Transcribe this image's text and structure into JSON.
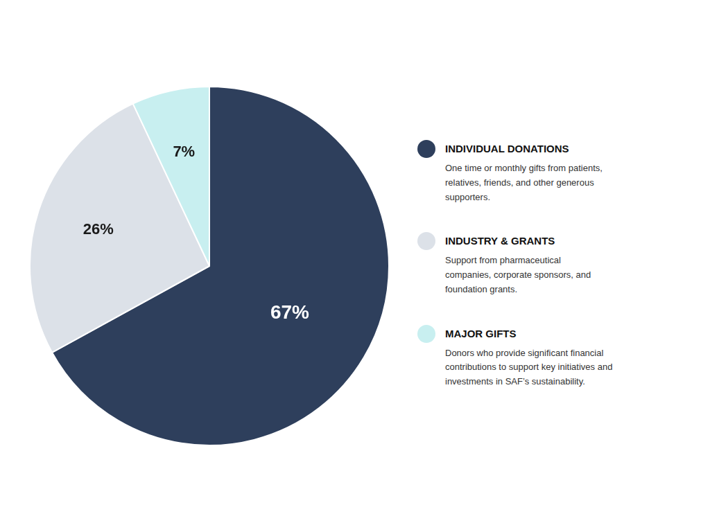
{
  "chart_data": {
    "type": "pie",
    "categories": [
      "INDIVIDUAL DONATIONS",
      "INDUSTRY & GRANTS",
      "MAJOR GIFTS"
    ],
    "values": [
      67,
      26,
      7
    ],
    "value_labels": [
      "67%",
      "26%",
      "7%"
    ],
    "data_labels": true,
    "colors": [
      "#2e3f5c",
      "#dce1e8",
      "#c8eff0"
    ],
    "annotations": [
      "One time or monthly gifts from patients,\nrelatives, friends, and other generous\nsupporters.",
      "Support from pharmaceutical\ncompanies, corporate sponsors, and\nfoundation grants.",
      "Donors who provide significant financial\ncontributions to support key initiatives and\ninvestments in SAF’s sustainability."
    ],
    "legend": "right"
  }
}
